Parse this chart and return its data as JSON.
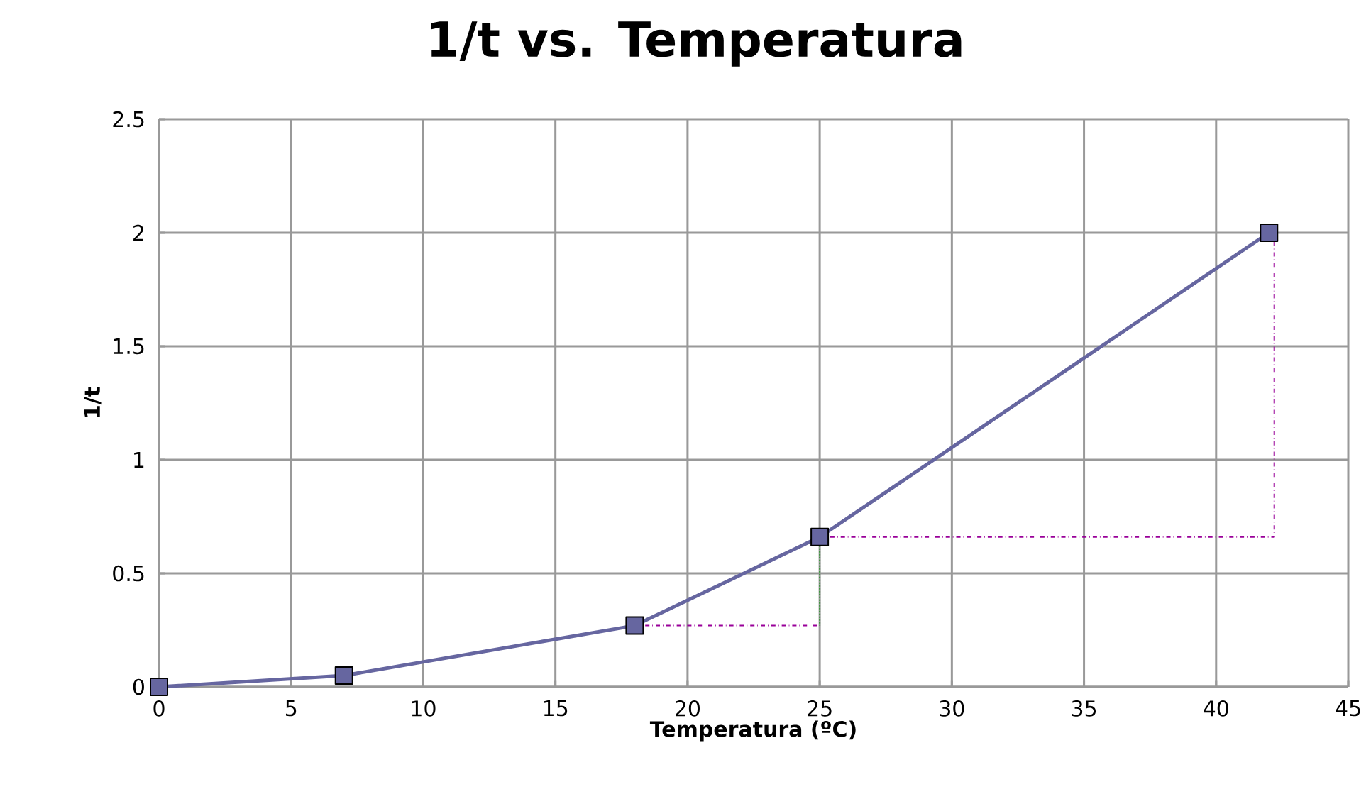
{
  "chart_data": {
    "type": "line",
    "title": "1/t vs. Temperatura",
    "xlabel": "Temperatura (ºC)",
    "ylabel": "1/t",
    "xlim": [
      0,
      45
    ],
    "xticks": [
      0,
      5,
      10,
      15,
      20,
      25,
      30,
      35,
      40,
      45
    ],
    "ylim": [
      0,
      2.5
    ],
    "yticks": [
      0,
      0.5,
      1,
      1.5,
      2,
      2.5
    ],
    "grid": true,
    "series": [
      {
        "color": "#6666a0",
        "marker": "square",
        "line_style": "solid",
        "x": [
          0,
          7,
          18,
          25,
          42
        ],
        "values": [
          0,
          0.05,
          0.27,
          0.66,
          2
        ]
      },
      {
        "color": "#990099",
        "marker": "none",
        "line_style": "dashed",
        "x": [
          18,
          25
        ],
        "values": [
          0.27,
          0.27
        ]
      },
      {
        "color": "#990099",
        "marker": "none",
        "line_style": "dashed",
        "x": [
          25,
          42.2,
          42.2
        ],
        "values": [
          0.66,
          0.66,
          2
        ]
      },
      {
        "color": "#339933",
        "marker": "none",
        "line_style": "dotted",
        "x": [
          25,
          25
        ],
        "values": [
          0.66,
          0.27
        ]
      }
    ]
  }
}
